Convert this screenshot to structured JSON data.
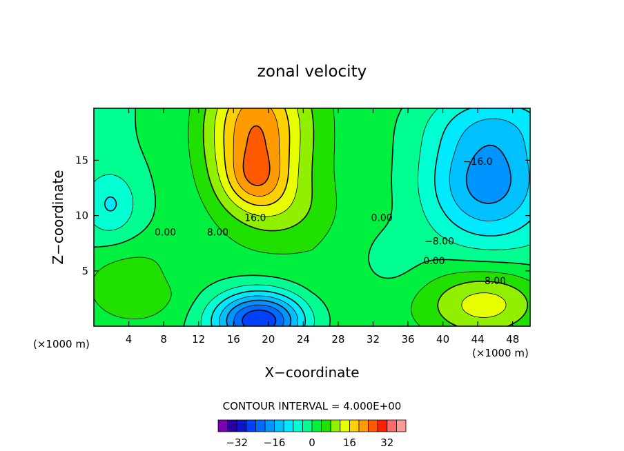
{
  "chart_data": {
    "type": "heatmap",
    "title": "zonal velocity",
    "xlabel": "X−coordinate",
    "ylabel": "Z−coordinate",
    "x_unit_left": "(×1000 m)",
    "x_unit_right": "(×1000 m)",
    "xlim": [
      0,
      50
    ],
    "ylim": [
      0,
      19.7
    ],
    "x_ticks": [
      4,
      8,
      12,
      16,
      20,
      24,
      28,
      32,
      36,
      40,
      44,
      48
    ],
    "y_ticks": [
      5,
      10,
      15
    ],
    "contour_interval_text": "CONTOUR INTERVAL = 4.000E+00",
    "contour_labels": [
      {
        "text": "16.0",
        "x": 18.5,
        "y": 9.5
      },
      {
        "text": "8.00",
        "x": 14.2,
        "y": 8.2
      },
      {
        "text": "0.00",
        "x": 8.2,
        "y": 8.2
      },
      {
        "text": "0.00",
        "x": 33.0,
        "y": 9.5
      },
      {
        "text": "−16.0",
        "x": 44.0,
        "y": 14.6
      },
      {
        "text": "−8.00",
        "x": 39.6,
        "y": 7.4
      },
      {
        "text": "0.00",
        "x": 39.0,
        "y": 5.6
      },
      {
        "text": "8.00",
        "x": 46.0,
        "y": 3.8
      }
    ],
    "field_features": [
      {
        "kind": "max",
        "x": 18.5,
        "y": 18.5,
        "value": 24
      },
      {
        "kind": "max",
        "x": 18.0,
        "y": 13.5,
        "value": 26
      },
      {
        "kind": "min",
        "x": 19.0,
        "y": 0.5,
        "value": -24
      },
      {
        "kind": "min",
        "x": 46.0,
        "y": 12.5,
        "value": -18
      }
    ],
    "colorbar": {
      "levels": [
        -36,
        -32,
        -28,
        -24,
        -20,
        -16,
        -12,
        -8,
        -4,
        0,
        4,
        8,
        12,
        16,
        20,
        24,
        28,
        32,
        36
      ],
      "tick_values": [
        -32,
        -16,
        0,
        16,
        32
      ],
      "tick_labels": [
        "−32",
        "−16",
        "0",
        "16",
        "32"
      ],
      "colors": [
        "#7a00b0",
        "#2800a0",
        "#0a14c8",
        "#0040ff",
        "#006cff",
        "#0094ff",
        "#00c0ff",
        "#00eaff",
        "#00ffd2",
        "#00ff90",
        "#00f040",
        "#20e000",
        "#90f000",
        "#e8ff00",
        "#ffd000",
        "#ff9a00",
        "#ff5a00",
        "#ff1e00",
        "#ff6a6a",
        "#ff9a9a"
      ]
    }
  }
}
